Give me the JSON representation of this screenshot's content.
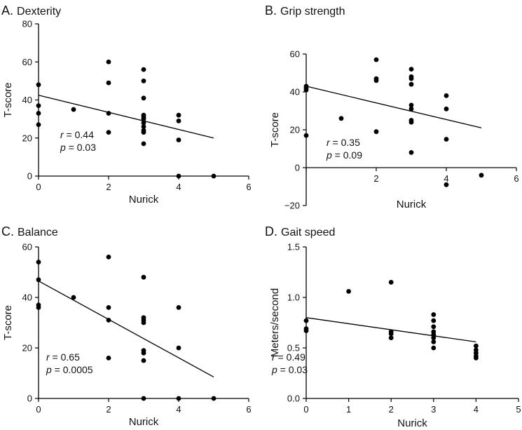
{
  "chart_data": [
    {
      "type": "scatter",
      "panel": "A.",
      "title": "Dexterity",
      "xlabel": "Nurick",
      "ylabel": "T-score",
      "xlim": [
        0,
        6
      ],
      "ylim": [
        0,
        80
      ],
      "xticks": [
        0,
        2,
        4,
        6
      ],
      "yticks": [
        0,
        20,
        40,
        60,
        80
      ],
      "points": [
        [
          0,
          48
        ],
        [
          0,
          37
        ],
        [
          0,
          33
        ],
        [
          0,
          27
        ],
        [
          1,
          35
        ],
        [
          2,
          60
        ],
        [
          2,
          49
        ],
        [
          2,
          33
        ],
        [
          2,
          23
        ],
        [
          3,
          56
        ],
        [
          3,
          50
        ],
        [
          3,
          41
        ],
        [
          3,
          32
        ],
        [
          3,
          31
        ],
        [
          3,
          30
        ],
        [
          3,
          28
        ],
        [
          3,
          26
        ],
        [
          3,
          24
        ],
        [
          3,
          23
        ],
        [
          3,
          17
        ],
        [
          4,
          32
        ],
        [
          4,
          29
        ],
        [
          4,
          19
        ],
        [
          4,
          0
        ],
        [
          5,
          0
        ]
      ],
      "trend_line": [
        [
          0,
          42.5
        ],
        [
          5,
          20
        ]
      ],
      "stat_r": "0.44",
      "stat_p": "0.03"
    },
    {
      "type": "scatter",
      "panel": "B.",
      "title": "Grip strength",
      "xlabel": "Nurick",
      "ylabel": "T-score",
      "xlim": [
        0,
        6
      ],
      "ylim": [
        -20,
        60
      ],
      "xticks": [
        2,
        4,
        6
      ],
      "yticks": [
        -20,
        0,
        20,
        40,
        60
      ],
      "points": [
        [
          0,
          43
        ],
        [
          0,
          42
        ],
        [
          0,
          41
        ],
        [
          0,
          17
        ],
        [
          1,
          26
        ],
        [
          2,
          57
        ],
        [
          2,
          47
        ],
        [
          2,
          46
        ],
        [
          2,
          19
        ],
        [
          3,
          52
        ],
        [
          3,
          48
        ],
        [
          3,
          47
        ],
        [
          3,
          44
        ],
        [
          3,
          33
        ],
        [
          3,
          31
        ],
        [
          3,
          25
        ],
        [
          3,
          24
        ],
        [
          3,
          8
        ],
        [
          4,
          38
        ],
        [
          4,
          31
        ],
        [
          4,
          15
        ],
        [
          4,
          -9
        ],
        [
          5,
          -4
        ]
      ],
      "trend_line": [
        [
          0,
          43
        ],
        [
          5,
          21
        ]
      ],
      "stat_r": "0.35",
      "stat_p": "0.09"
    },
    {
      "type": "scatter",
      "panel": "C.",
      "title": "Balance",
      "xlabel": "Nurick",
      "ylabel": "T-score",
      "xlim": [
        0,
        6
      ],
      "ylim": [
        0,
        60
      ],
      "xticks": [
        0,
        2,
        4,
        6
      ],
      "yticks": [
        0,
        20,
        40,
        60
      ],
      "points": [
        [
          0,
          54
        ],
        [
          0,
          47
        ],
        [
          0,
          37
        ],
        [
          0,
          36
        ],
        [
          1,
          40
        ],
        [
          2,
          56
        ],
        [
          2,
          36
        ],
        [
          2,
          31
        ],
        [
          2,
          16
        ],
        [
          3,
          48
        ],
        [
          3,
          32
        ],
        [
          3,
          31
        ],
        [
          3,
          30
        ],
        [
          3,
          19
        ],
        [
          3,
          18
        ],
        [
          3,
          15
        ],
        [
          3,
          0
        ],
        [
          4,
          36
        ],
        [
          4,
          20
        ],
        [
          4,
          0
        ],
        [
          5,
          0
        ]
      ],
      "trend_line": [
        [
          0,
          46.5
        ],
        [
          5,
          8.5
        ]
      ],
      "stat_r": "0.65",
      "stat_p": "0.0005"
    },
    {
      "type": "scatter",
      "panel": "D.",
      "title": "Gait speed",
      "xlabel": "Nurick",
      "ylabel": "Meters/second",
      "xlim": [
        0,
        5
      ],
      "ylim": [
        0.0,
        1.5
      ],
      "xticks": [
        0,
        1,
        2,
        3,
        4,
        5
      ],
      "yticks": [
        0.0,
        0.5,
        1.0,
        1.5
      ],
      "ytick_labels": [
        "0.0",
        "0.5",
        "1.0",
        "1.5"
      ],
      "points": [
        [
          0,
          0.77
        ],
        [
          0,
          0.69
        ],
        [
          0,
          0.67
        ],
        [
          1,
          1.06
        ],
        [
          2,
          1.15
        ],
        [
          2,
          0.66
        ],
        [
          2,
          0.64
        ],
        [
          2,
          0.6
        ],
        [
          3,
          0.83
        ],
        [
          3,
          0.77
        ],
        [
          3,
          0.71
        ],
        [
          3,
          0.66
        ],
        [
          3,
          0.63
        ],
        [
          3,
          0.6
        ],
        [
          3,
          0.56
        ],
        [
          3,
          0.5
        ],
        [
          4,
          0.52
        ],
        [
          4,
          0.48
        ],
        [
          4,
          0.45
        ],
        [
          4,
          0.42
        ],
        [
          4,
          0.4
        ]
      ],
      "trend_line": [
        [
          0,
          0.8
        ],
        [
          4,
          0.56
        ]
      ],
      "stat_r": "0.49",
      "stat_p": "0.03"
    }
  ]
}
